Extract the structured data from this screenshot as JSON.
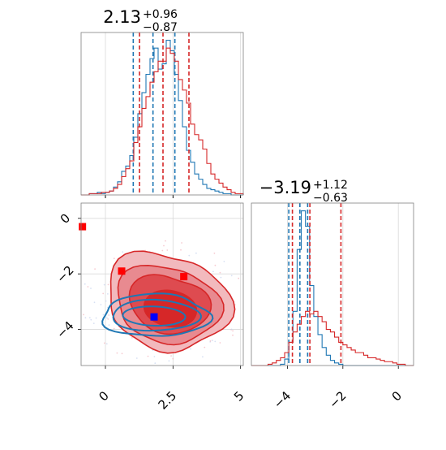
{
  "chart_data": {
    "type": "corner",
    "parameters": [
      "p0",
      "p1"
    ],
    "colors": {
      "model_a": "#d62728",
      "model_b": "#1f77b4"
    },
    "grid": true,
    "panels": [
      {
        "position": "top-left",
        "type": "histogram",
        "parameter": "p0",
        "title": {
          "median": "2.13",
          "plus": "+0.96",
          "minus": "−0.87"
        },
        "xlim": [
          -0.9,
          5.1
        ],
        "x_ticks": [
          0.0,
          2.5,
          5.0
        ],
        "bin_edges": [
          -0.9,
          -0.75,
          -0.6,
          -0.45,
          -0.3,
          -0.15,
          0.0,
          0.15,
          0.3,
          0.45,
          0.6,
          0.75,
          0.9,
          1.05,
          1.2,
          1.35,
          1.5,
          1.65,
          1.8,
          1.95,
          2.1,
          2.25,
          2.4,
          2.55,
          2.7,
          2.85,
          3.0,
          3.15,
          3.3,
          3.45,
          3.6,
          3.75,
          3.9,
          4.05,
          4.2,
          4.35,
          4.5,
          4.65,
          4.8,
          4.95,
          5.1
        ],
        "series": [
          {
            "name": "",
            "color": "#1f77b4",
            "values": [
              0,
              0,
              1,
              1,
              2,
              1,
              2,
              3,
              6,
              10,
              18,
              22,
              30,
              44,
              62,
              78,
              92,
              104,
              112,
              96,
              100,
              118,
              110,
              92,
              72,
              52,
              34,
              25,
              16,
              12,
              8,
              5,
              4,
              3,
              2,
              1,
              1,
              0,
              0,
              0
            ],
            "quantiles": [
              1.03,
              1.76,
              2.57
            ]
          },
          {
            "name": "",
            "color": "#d62728",
            "values": [
              0,
              0,
              1,
              1,
              1,
              2,
              2,
              3,
              5,
              8,
              14,
              20,
              26,
              40,
              52,
              66,
              75,
              86,
              94,
              102,
              102,
              112,
              108,
              102,
              88,
              80,
              70,
              54,
              46,
              42,
              35,
              24,
              16,
              12,
              9,
              6,
              4,
              2,
              1,
              1
            ],
            "quantiles": [
              1.26,
              2.13,
              3.09
            ]
          }
        ]
      },
      {
        "position": "bottom-left",
        "type": "2d-density",
        "xlim": [
          -0.9,
          5.1
        ],
        "ylim": [
          -5.3,
          0.55
        ],
        "x_ticks": [
          0.0,
          2.5,
          5.0
        ],
        "y_ticks": [
          0,
          -2,
          -4
        ],
        "markers": [
          {
            "color": "#ff0000",
            "x": -0.85,
            "y": -0.3
          },
          {
            "color": "#ff0000",
            "x": 0.6,
            "y": -1.9
          },
          {
            "color": "#ff0000",
            "x": 2.9,
            "y": -2.1
          },
          {
            "color": "#0000ff",
            "x": 1.8,
            "y": -3.55
          }
        ]
      },
      {
        "position": "bottom-right",
        "type": "histogram",
        "parameter": "p1",
        "title": {
          "median": "−3.19",
          "plus": "+1.12",
          "minus": "−0.63"
        },
        "xlim": [
          -5.3,
          0.55
        ],
        "x_ticks": [
          -4,
          -2,
          0
        ],
        "bin_edges": [
          -5.3,
          -5.15,
          -5.0,
          -4.85,
          -4.7,
          -4.55,
          -4.4,
          -4.25,
          -4.1,
          -3.95,
          -3.8,
          -3.65,
          -3.5,
          -3.35,
          -3.2,
          -3.05,
          -2.9,
          -2.75,
          -2.6,
          -2.45,
          -2.3,
          -2.15,
          -2.0,
          -1.85,
          -1.7,
          -1.55,
          -1.4,
          -1.25,
          -1.1,
          -0.95,
          -0.8,
          -0.65,
          -0.5,
          -0.35,
          -0.2,
          -0.05,
          0.1,
          0.25,
          0.4,
          0.55
        ],
        "series": [
          {
            "name": "",
            "color": "#1f77b4",
            "values": [
              0,
              0,
              0,
              0,
              0,
              0,
              0,
              1,
              5,
              18,
              42,
              90,
              120,
              108,
              62,
              38,
              24,
              14,
              8,
              4,
              2,
              1,
              0,
              0,
              0,
              0,
              0,
              0,
              0,
              0,
              0,
              0,
              0,
              0,
              0,
              0,
              0,
              0,
              0
            ],
            "quantiles": [
              -3.95,
              -3.55,
              -3.27
            ]
          },
          {
            "name": "",
            "color": "#d62728",
            "values": [
              0,
              0,
              0,
              0,
              1,
              2,
              4,
              6,
              10,
              18,
              26,
              32,
              38,
              42,
              40,
              42,
              38,
              34,
              28,
              26,
              22,
              18,
              16,
              14,
              12,
              10,
              10,
              8,
              6,
              6,
              5,
              4,
              3,
              3,
              2,
              1,
              1,
              0,
              0
            ],
            "quantiles": [
              -3.82,
              -3.19,
              -2.07
            ]
          }
        ]
      }
    ]
  }
}
